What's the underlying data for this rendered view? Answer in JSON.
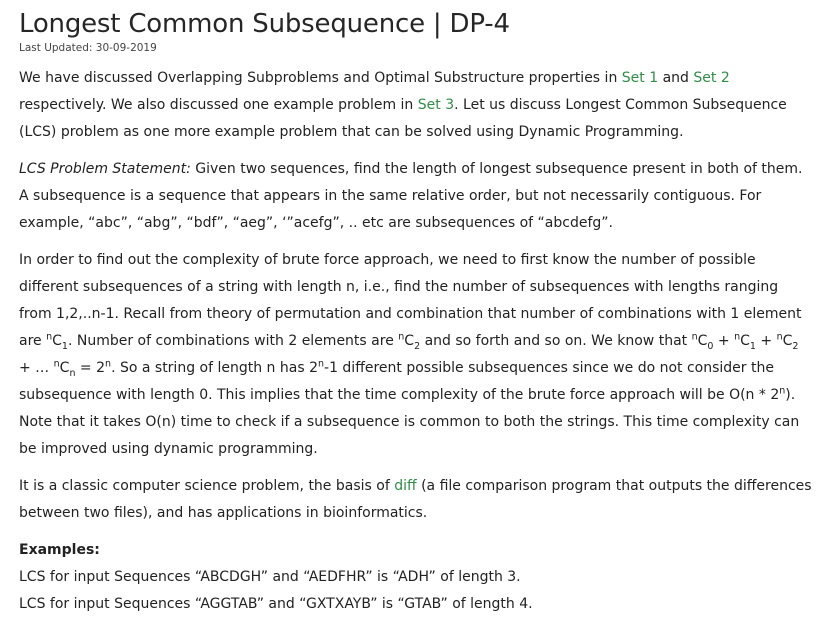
{
  "title": "Longest Common Subsequence | DP-4",
  "last_updated": "Last Updated: 30-09-2019",
  "intro": {
    "t1": "We have discussed Overlapping Subproblems and Optimal Substructure properties in ",
    "link_set1": "Set 1",
    "t2": " and ",
    "link_set2": "Set 2",
    "t3": " respectively. We also discussed one example problem in ",
    "link_set3": "Set 3",
    "t4": ". Let us discuss Longest Common Subsequence (LCS) problem as one more example problem that can be solved using Dynamic Programming."
  },
  "statement": {
    "label": "LCS Problem Statement:",
    "text": " Given two sequences, find the length of longest subsequence present in both of them. A subsequence is a sequence that appears in the same relative order, but not necessarily contiguous. For example, “abc”, “abg”, “bdf”, “aeg”, ‘”acefg”, .. etc are subsequences of “abcdefg”."
  },
  "complexity": {
    "t1": "In order to find out the complexity of brute force approach, we need to first know the number of possible different subsequences of a string with length n, i.e., find the number of subsequences with lengths ranging from 1,2,..n-1. Recall from theory of permutation and combination that number of combinations with 1 element are ",
    "sup_n": "n",
    "C": "C",
    "sub_1": "1",
    "t2": ". Number of combinations with 2 elements are ",
    "sub_2": "2",
    "t3": " and so forth and so on. We know that ",
    "sub_0": "0",
    "plus": " + ",
    "ellipsis": " + … ",
    "sub_n": "n",
    "eq": " = 2",
    "t4": ". So a string of length n has 2",
    "t5": "-1 different possible subsequences since we do not consider the subsequence with length 0. This implies that the time complexity of the brute force approach will be O(n * 2",
    "t6": "). Note that it takes O(n) time to check if a subsequence is common to both the strings. This time complexity can be improved using dynamic programming."
  },
  "classic": {
    "t1": "It is a classic computer science problem, the basis of ",
    "link_diff": "diff",
    "t2": " (a file comparison program that outputs the differences between two files), and has applications in bioinformatics."
  },
  "examples": {
    "heading": "Examples:",
    "lines": [
      "LCS for input Sequences “ABCDGH” and “AEDFHR” is “ADH” of length 3.",
      "LCS for input Sequences “AGGTAB” and “GXTXAYB” is “GTAB” of length 4."
    ]
  },
  "colors": {
    "link": "#2f8d46",
    "text": "#222222"
  }
}
